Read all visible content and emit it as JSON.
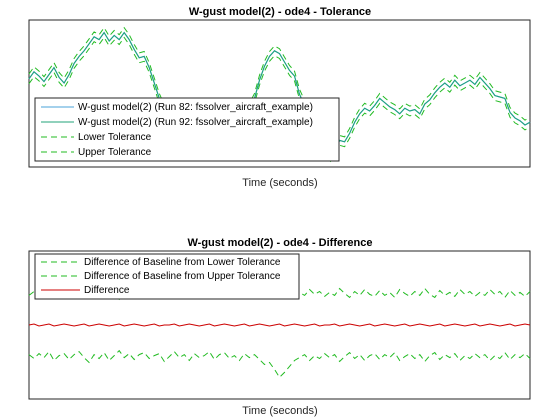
{
  "colors": {
    "run82": "#4aa3d8",
    "run92": "#20a37a",
    "tolerance": "#22bb22",
    "difference": "#cc0000",
    "axes": "#262626",
    "background": "#ffffff"
  },
  "chart_data": [
    {
      "type": "line",
      "title": "W-gust model(2) - ode4 - Tolerance",
      "xlabel": "Time (seconds)",
      "ylabel": "",
      "grid": false,
      "legend_position": "bottom-left",
      "x": [
        0,
        1,
        2,
        3,
        4,
        5,
        6,
        7,
        8,
        9,
        10,
        11,
        12,
        13,
        14,
        15,
        16,
        17,
        18,
        19,
        20,
        21,
        22,
        23,
        24,
        25,
        26,
        27,
        28,
        29,
        30,
        31,
        32,
        33,
        34,
        35,
        36,
        37,
        38,
        39,
        40,
        41,
        42,
        43,
        44,
        45,
        46,
        47,
        48,
        49,
        50,
        51,
        52,
        53,
        54,
        55,
        56,
        57,
        58,
        59,
        60,
        61,
        62,
        63,
        64,
        65,
        66,
        67,
        68,
        69,
        70,
        71,
        72,
        73,
        74,
        75,
        76,
        77,
        78,
        79,
        80,
        81,
        82,
        83,
        84,
        85,
        86,
        87,
        88,
        89,
        90,
        91,
        92,
        93,
        94,
        95,
        96,
        97,
        98,
        99,
        100
      ],
      "y_signal": [
        0.58,
        0.63,
        0.6,
        0.56,
        0.61,
        0.66,
        0.59,
        0.55,
        0.61,
        0.69,
        0.74,
        0.78,
        0.83,
        0.88,
        0.86,
        0.91,
        0.85,
        0.89,
        0.86,
        0.91,
        0.86,
        0.79,
        0.73,
        0.74,
        0.66,
        0.55,
        0.44,
        0.36,
        0.32,
        0.28,
        0.27,
        0.29,
        0.27,
        0.3,
        0.29,
        0.31,
        0.32,
        0.28,
        0.27,
        0.33,
        0.3,
        0.28,
        0.27,
        0.29,
        0.37,
        0.44,
        0.57,
        0.67,
        0.74,
        0.78,
        0.76,
        0.7,
        0.64,
        0.6,
        0.47,
        0.39,
        0.32,
        0.27,
        0.2,
        0.12,
        0.02,
        0.05,
        0.14,
        0.13,
        0.19,
        0.27,
        0.33,
        0.37,
        0.35,
        0.39,
        0.44,
        0.41,
        0.38,
        0.36,
        0.33,
        0.37,
        0.35,
        0.36,
        0.33,
        0.4,
        0.43,
        0.48,
        0.52,
        0.55,
        0.52,
        0.57,
        0.53,
        0.55,
        0.57,
        0.54,
        0.59,
        0.55,
        0.51,
        0.46,
        0.45,
        0.44,
        0.34,
        0.3,
        0.28,
        0.25,
        0.27
      ],
      "tolerance_offset": 0.035,
      "ylim": [
        -0.05,
        1.0
      ],
      "series": [
        {
          "name": "W-gust model(2) (Run 82: fssolver_aircraft_example)",
          "style": "solid"
        },
        {
          "name": "W-gust model(2) (Run 92: fssolver_aircraft_example)",
          "style": "solid"
        },
        {
          "name": "Lower Tolerance",
          "style": "dashed"
        },
        {
          "name": "Upper Tolerance",
          "style": "dashed"
        }
      ]
    },
    {
      "type": "line",
      "title": "W-gust model(2) - ode4 - Difference",
      "xlabel": "Time (seconds)",
      "ylabel": "",
      "grid": false,
      "legend_position": "top-left",
      "x": [
        0,
        1,
        2,
        3,
        4,
        5,
        6,
        7,
        8,
        9,
        10,
        11,
        12,
        13,
        14,
        15,
        16,
        17,
        18,
        19,
        20,
        21,
        22,
        23,
        24,
        25,
        26,
        27,
        28,
        29,
        30,
        31,
        32,
        33,
        34,
        35,
        36,
        37,
        38,
        39,
        40,
        41,
        42,
        43,
        44,
        45,
        46,
        47,
        48,
        49,
        50,
        51,
        52,
        53,
        54,
        55,
        56,
        57,
        58,
        59,
        60,
        61,
        62,
        63,
        64,
        65,
        66,
        67,
        68,
        69,
        70,
        71,
        72,
        73,
        74,
        75,
        76,
        77,
        78,
        79,
        80,
        81,
        82,
        83,
        84,
        85,
        86,
        87,
        88,
        89,
        90,
        91,
        92,
        93,
        94,
        95,
        96,
        97,
        98,
        99,
        100
      ],
      "y_upper_tolerance_diff": [
        0.3,
        0.34,
        0.29,
        0.33,
        0.27,
        0.36,
        0.31,
        0.29,
        0.35,
        0.3,
        0.27,
        0.33,
        0.38,
        0.3,
        0.34,
        0.28,
        0.36,
        0.31,
        0.26,
        0.33,
        0.29,
        0.35,
        0.3,
        0.28,
        0.34,
        0.31,
        0.29,
        0.37,
        0.32,
        0.27,
        0.33,
        0.3,
        0.36,
        0.29,
        0.33,
        0.31,
        0.27,
        0.35,
        0.3,
        0.28,
        0.34,
        0.31,
        0.36,
        0.29,
        0.33,
        0.3,
        0.35,
        0.4,
        0.38,
        0.45,
        0.53,
        0.48,
        0.42,
        0.36,
        0.33,
        0.3,
        0.36,
        0.31,
        0.34,
        0.29,
        0.33,
        0.3,
        0.37,
        0.32,
        0.28,
        0.34,
        0.3,
        0.36,
        0.31,
        0.29,
        0.35,
        0.3,
        0.33,
        0.28,
        0.36,
        0.32,
        0.29,
        0.34,
        0.3,
        0.37,
        0.31,
        0.28,
        0.35,
        0.3,
        0.33,
        0.29,
        0.36,
        0.31,
        0.34,
        0.29,
        0.33,
        0.3,
        0.36,
        0.31,
        0.34,
        0.28,
        0.35,
        0.3,
        0.33,
        0.29,
        0.34
      ],
      "y_lower_tolerance_diff": [
        -0.3,
        -0.34,
        -0.29,
        -0.33,
        -0.27,
        -0.36,
        -0.31,
        -0.29,
        -0.35,
        -0.3,
        -0.27,
        -0.33,
        -0.38,
        -0.3,
        -0.34,
        -0.28,
        -0.36,
        -0.31,
        -0.26,
        -0.33,
        -0.29,
        -0.35,
        -0.3,
        -0.28,
        -0.34,
        -0.31,
        -0.29,
        -0.37,
        -0.32,
        -0.27,
        -0.33,
        -0.3,
        -0.36,
        -0.29,
        -0.33,
        -0.31,
        -0.27,
        -0.35,
        -0.3,
        -0.28,
        -0.34,
        -0.31,
        -0.36,
        -0.29,
        -0.33,
        -0.3,
        -0.35,
        -0.4,
        -0.38,
        -0.45,
        -0.53,
        -0.48,
        -0.42,
        -0.36,
        -0.33,
        -0.3,
        -0.36,
        -0.31,
        -0.34,
        -0.29,
        -0.33,
        -0.3,
        -0.37,
        -0.32,
        -0.28,
        -0.34,
        -0.3,
        -0.36,
        -0.31,
        -0.29,
        -0.35,
        -0.3,
        -0.33,
        -0.28,
        -0.36,
        -0.32,
        -0.29,
        -0.34,
        -0.3,
        -0.37,
        -0.31,
        -0.28,
        -0.35,
        -0.3,
        -0.33,
        -0.29,
        -0.36,
        -0.31,
        -0.34,
        -0.29,
        -0.33,
        -0.3,
        -0.36,
        -0.31,
        -0.34,
        -0.28,
        -0.35,
        -0.3,
        -0.33,
        -0.29,
        -0.34
      ],
      "y_difference": [
        0.0,
        0.01,
        -0.01,
        0.0,
        0.01,
        -0.01,
        0.0,
        0.01,
        0.0,
        -0.01,
        0.0,
        0.01,
        -0.01,
        0.0,
        0.01,
        0.0,
        -0.01,
        0.0,
        0.01,
        -0.01,
        0.0,
        0.01,
        0.0,
        -0.01,
        0.0,
        0.01,
        -0.01,
        0.0,
        0.0,
        0.01,
        -0.01,
        0.0,
        0.01,
        0.0,
        -0.01,
        0.0,
        0.01,
        -0.01,
        0.0,
        0.01,
        0.0,
        -0.01,
        0.0,
        0.01,
        -0.01,
        0.0,
        0.01,
        0.0,
        -0.01,
        0.0,
        0.01,
        -0.01,
        0.0,
        0.01,
        0.0,
        -0.01,
        0.0,
        0.01,
        -0.01,
        0.0,
        0.0,
        0.01,
        -0.01,
        0.0,
        0.01,
        0.0,
        -0.01,
        0.0,
        0.01,
        -0.01,
        0.0,
        0.01,
        0.0,
        -0.01,
        0.0,
        0.01,
        -0.01,
        0.0,
        0.01,
        0.0,
        -0.01,
        0.0,
        0.01,
        -0.01,
        0.0,
        0.01,
        0.0,
        -0.01,
        0.0,
        0.01,
        -0.01,
        0.0,
        0.01,
        0.0,
        -0.01,
        0.0,
        0.01,
        -0.01,
        0.0,
        0.01,
        0.0
      ],
      "ylim": [
        -0.75,
        0.75
      ],
      "series": [
        {
          "name": "Difference of Baseline from Lower Tolerance",
          "style": "dashed"
        },
        {
          "name": "Difference of Baseline from Upper Tolerance",
          "style": "dashed"
        },
        {
          "name": "Difference",
          "style": "solid"
        }
      ]
    }
  ]
}
